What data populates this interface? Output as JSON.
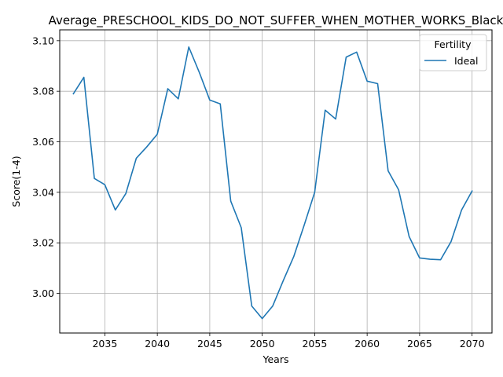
{
  "chart_data": {
    "type": "line",
    "title": "Average_PRESCHOOL_KIDS_DO_NOT_SUFFER_WHEN_MOTHER_WORKS_Black",
    "xlabel": "Years",
    "ylabel": "Score(1-4)",
    "xlim": [
      2030.7,
      2071.9
    ],
    "ylim": [
      2.9843,
      3.1043
    ],
    "xticks": [
      2035,
      2040,
      2045,
      2050,
      2055,
      2060,
      2065,
      2070
    ],
    "xtick_labels": [
      "2035",
      "2040",
      "2045",
      "2050",
      "2055",
      "2060",
      "2065",
      "2070"
    ],
    "yticks": [
      3.0,
      3.02,
      3.04,
      3.06,
      3.08,
      3.1
    ],
    "ytick_labels": [
      "3.00",
      "3.02",
      "3.04",
      "3.06",
      "3.08",
      "3.10"
    ],
    "grid": true,
    "legend": {
      "title": "Fertility",
      "placement": "top-right"
    },
    "series": [
      {
        "name": "Ideal",
        "color": "#1f77b4",
        "x": [
          2032,
          2033,
          2034,
          2035,
          2036,
          2037,
          2038,
          2039,
          2040,
          2041,
          2042,
          2043,
          2044,
          2045,
          2046,
          2047,
          2048,
          2049,
          2050,
          2051,
          2052,
          2053,
          2054,
          2055,
          2056,
          2057,
          2058,
          2059,
          2060,
          2061,
          2062,
          2063,
          2064,
          2065,
          2066,
          2067,
          2068,
          2069,
          2070
        ],
        "y": [
          3.079,
          3.0855,
          3.0455,
          3.043,
          3.033,
          3.0395,
          3.0535,
          3.058,
          3.063,
          3.081,
          3.077,
          3.0975,
          3.0875,
          3.0765,
          3.075,
          3.0365,
          3.026,
          2.995,
          2.99,
          2.995,
          3.005,
          3.0145,
          3.027,
          3.04,
          3.0725,
          3.069,
          3.0935,
          3.0955,
          3.084,
          3.083,
          3.0485,
          3.041,
          3.0225,
          3.014,
          3.0135,
          3.0133,
          3.0205,
          3.033,
          3.0405
        ]
      }
    ]
  }
}
